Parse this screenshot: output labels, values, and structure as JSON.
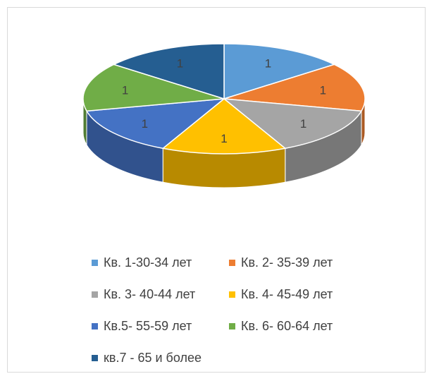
{
  "chart_data": {
    "type": "pie",
    "variant": "3d",
    "title": "",
    "legend_position": "bottom",
    "slices": [
      {
        "label": "Кв. 1-30-34 лет",
        "value": 1,
        "data_label": "1",
        "color": "#5b9bd5"
      },
      {
        "label": "Кв. 2- 35-39 лет",
        "value": 1,
        "data_label": "1",
        "color": "#ed7d31"
      },
      {
        "label": "Кв. 3- 40-44 лет",
        "value": 1,
        "data_label": "1",
        "color": "#a5a5a5"
      },
      {
        "label": "Кв. 4- 45-49 лет",
        "value": 1,
        "data_label": "1",
        "color": "#ffc000"
      },
      {
        "label": "Кв.5- 55-59 лет",
        "value": 1,
        "data_label": "1",
        "color": "#4472c4"
      },
      {
        "label": "Кв. 6- 60-64 лет",
        "value": 1,
        "data_label": "1",
        "color": "#70ad47"
      },
      {
        "label": "кв.7 - 65 и более",
        "value": 1,
        "data_label": "1",
        "color": "#255e91"
      }
    ]
  }
}
